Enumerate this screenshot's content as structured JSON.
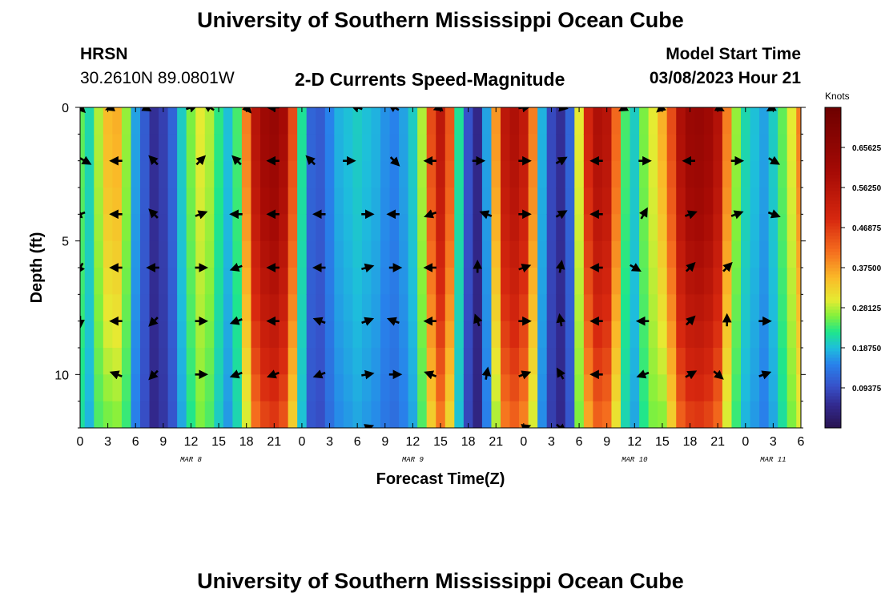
{
  "page_title": "University of Southern Mississippi Ocean Cube",
  "footer_title": "University of Southern Mississippi Ocean Cube",
  "header": {
    "station": "HRSN",
    "coordinates": "30.2610N  89.0801W",
    "plot_title": "2-D Currents Speed-Magnitude",
    "model_label": "Model Start Time",
    "model_time": "03/08/2023 Hour 21"
  },
  "chart_data": {
    "type": "heatmap",
    "title": "2-D Currents Speed-Magnitude",
    "xlabel": "Forecast Time(Z)",
    "ylabel": "Depth (ft)",
    "colorbar_label": "Knots",
    "colorbar_ticks": [
      "0.65625",
      "0.56250",
      "0.46875",
      "0.37500",
      "0.28125",
      "0.18750",
      "0.09375"
    ],
    "colorbar_range": [
      0.0,
      0.75
    ],
    "x_range_hours": [
      0,
      78
    ],
    "x_ticks": [
      {
        "h": 0,
        "label": "0"
      },
      {
        "h": 3,
        "label": "3"
      },
      {
        "h": 6,
        "label": "6"
      },
      {
        "h": 9,
        "label": "9"
      },
      {
        "h": 12,
        "label": "12"
      },
      {
        "h": 15,
        "label": "15"
      },
      {
        "h": 18,
        "label": "18"
      },
      {
        "h": 21,
        "label": "21"
      },
      {
        "h": 24,
        "label": "0"
      },
      {
        "h": 27,
        "label": "3"
      },
      {
        "h": 30,
        "label": "6"
      },
      {
        "h": 33,
        "label": "9"
      },
      {
        "h": 36,
        "label": "12"
      },
      {
        "h": 39,
        "label": "15"
      },
      {
        "h": 42,
        "label": "18"
      },
      {
        "h": 45,
        "label": "21"
      },
      {
        "h": 48,
        "label": "0"
      },
      {
        "h": 51,
        "label": "3"
      },
      {
        "h": 54,
        "label": "6"
      },
      {
        "h": 57,
        "label": "9"
      },
      {
        "h": 60,
        "label": "12"
      },
      {
        "h": 63,
        "label": "15"
      },
      {
        "h": 66,
        "label": "18"
      },
      {
        "h": 69,
        "label": "21"
      },
      {
        "h": 72,
        "label": "0"
      },
      {
        "h": 75,
        "label": "3"
      },
      {
        "h": 78,
        "label": "6"
      }
    ],
    "day_labels": [
      {
        "h": 12,
        "label": "MAR 8"
      },
      {
        "h": 36,
        "label": "MAR 9"
      },
      {
        "h": 60,
        "label": "MAR 10"
      },
      {
        "h": 75,
        "label": "MAR 11"
      }
    ],
    "y_range_ft": [
      0,
      12
    ],
    "y_ticks": [
      {
        "ft": 0,
        "label": "0"
      },
      {
        "ft": 5,
        "label": "5"
      },
      {
        "ft": 10,
        "label": "10"
      }
    ],
    "depths_ft": [
      0,
      2,
      4,
      6,
      8,
      10,
      12
    ],
    "speed_profile_by_hour": [
      {
        "h": 0,
        "v": 0.25
      },
      {
        "h": 1,
        "v": 0.21
      },
      {
        "h": 2,
        "v": 0.28
      },
      {
        "h": 3,
        "v": 0.35
      },
      {
        "h": 4,
        "v": 0.36
      },
      {
        "h": 5,
        "v": 0.27
      },
      {
        "h": 6,
        "v": 0.17
      },
      {
        "h": 7,
        "v": 0.11
      },
      {
        "h": 8,
        "v": 0.06
      },
      {
        "h": 9,
        "v": 0.08
      },
      {
        "h": 10,
        "v": 0.12
      },
      {
        "h": 11,
        "v": 0.2
      },
      {
        "h": 12,
        "v": 0.26
      },
      {
        "h": 13,
        "v": 0.3
      },
      {
        "h": 14,
        "v": 0.28
      },
      {
        "h": 15,
        "v": 0.23
      },
      {
        "h": 16,
        "v": 0.19
      },
      {
        "h": 17,
        "v": 0.24
      },
      {
        "h": 18,
        "v": 0.4
      },
      {
        "h": 19,
        "v": 0.56
      },
      {
        "h": 20,
        "v": 0.62
      },
      {
        "h": 21,
        "v": 0.64
      },
      {
        "h": 22,
        "v": 0.6
      },
      {
        "h": 23,
        "v": 0.45
      },
      {
        "h": 24,
        "v": 0.22
      },
      {
        "h": 25,
        "v": 0.12
      },
      {
        "h": 26,
        "v": 0.11
      },
      {
        "h": 27,
        "v": 0.15
      },
      {
        "h": 28,
        "v": 0.18
      },
      {
        "h": 29,
        "v": 0.19
      },
      {
        "h": 30,
        "v": 0.2
      },
      {
        "h": 31,
        "v": 0.19
      },
      {
        "h": 32,
        "v": 0.18
      },
      {
        "h": 33,
        "v": 0.16
      },
      {
        "h": 34,
        "v": 0.15
      },
      {
        "h": 35,
        "v": 0.17
      },
      {
        "h": 36,
        "v": 0.2
      },
      {
        "h": 37,
        "v": 0.28
      },
      {
        "h": 38,
        "v": 0.45
      },
      {
        "h": 39,
        "v": 0.55
      },
      {
        "h": 40,
        "v": 0.44
      },
      {
        "h": 41,
        "v": 0.22
      },
      {
        "h": 42,
        "v": 0.1
      },
      {
        "h": 43,
        "v": 0.05
      },
      {
        "h": 44,
        "v": 0.17
      },
      {
        "h": 45,
        "v": 0.38
      },
      {
        "h": 46,
        "v": 0.55
      },
      {
        "h": 47,
        "v": 0.58
      },
      {
        "h": 48,
        "v": 0.54
      },
      {
        "h": 49,
        "v": 0.4
      },
      {
        "h": 50,
        "v": 0.18
      },
      {
        "h": 51,
        "v": 0.09
      },
      {
        "h": 52,
        "v": 0.06
      },
      {
        "h": 53,
        "v": 0.12
      },
      {
        "h": 54,
        "v": 0.3
      },
      {
        "h": 55,
        "v": 0.5
      },
      {
        "h": 56,
        "v": 0.58
      },
      {
        "h": 57,
        "v": 0.56
      },
      {
        "h": 58,
        "v": 0.42
      },
      {
        "h": 59,
        "v": 0.24
      },
      {
        "h": 60,
        "v": 0.2
      },
      {
        "h": 61,
        "v": 0.26
      },
      {
        "h": 62,
        "v": 0.3
      },
      {
        "h": 63,
        "v": 0.36
      },
      {
        "h": 64,
        "v": 0.45
      },
      {
        "h": 65,
        "v": 0.58
      },
      {
        "h": 66,
        "v": 0.63
      },
      {
        "h": 67,
        "v": 0.64
      },
      {
        "h": 68,
        "v": 0.62
      },
      {
        "h": 69,
        "v": 0.57
      },
      {
        "h": 70,
        "v": 0.4
      },
      {
        "h": 71,
        "v": 0.27
      },
      {
        "h": 72,
        "v": 0.21
      },
      {
        "h": 73,
        "v": 0.19
      },
      {
        "h": 74,
        "v": 0.17
      },
      {
        "h": 75,
        "v": 0.2
      },
      {
        "h": 76,
        "v": 0.25
      },
      {
        "h": 77,
        "v": 0.3
      },
      {
        "h": 78,
        "v": 0.4
      }
    ],
    "vectors": [
      {
        "h": 0,
        "d": 0,
        "a": 315
      },
      {
        "h": 3.5,
        "d": 0,
        "a": 200
      },
      {
        "h": 7,
        "d": 0,
        "a": 330
      },
      {
        "h": 12,
        "d": 0,
        "a": 20
      },
      {
        "h": 14,
        "d": 0,
        "a": 150
      },
      {
        "h": 18,
        "d": 0,
        "a": 310
      },
      {
        "h": 21,
        "d": 0,
        "a": 180
      },
      {
        "h": 30,
        "d": 0,
        "a": 160
      },
      {
        "h": 34,
        "d": 0,
        "a": 150
      },
      {
        "h": 39,
        "d": 0,
        "a": 200
      },
      {
        "h": 48,
        "d": 0,
        "a": 10
      },
      {
        "h": 52,
        "d": 0,
        "a": 350
      },
      {
        "h": 59,
        "d": 0,
        "a": 210
      },
      {
        "h": 63,
        "d": 0,
        "a": 220
      },
      {
        "h": 69,
        "d": 0,
        "a": 330
      },
      {
        "h": 75,
        "d": 0,
        "a": 210
      },
      {
        "h": 0.5,
        "d": 2,
        "a": 330
      },
      {
        "h": 4,
        "d": 2,
        "a": 180
      },
      {
        "h": 8,
        "d": 2,
        "a": 135
      },
      {
        "h": 13,
        "d": 2,
        "a": 45
      },
      {
        "h": 17,
        "d": 2,
        "a": 135
      },
      {
        "h": 21,
        "d": 2,
        "a": 180
      },
      {
        "h": 25,
        "d": 2,
        "a": 135
      },
      {
        "h": 29,
        "d": 2,
        "a": 0
      },
      {
        "h": 34,
        "d": 2,
        "a": 315
      },
      {
        "h": 38,
        "d": 2,
        "a": 180
      },
      {
        "h": 43,
        "d": 2,
        "a": 0
      },
      {
        "h": 48,
        "d": 2,
        "a": 0
      },
      {
        "h": 52,
        "d": 2,
        "a": 30
      },
      {
        "h": 56,
        "d": 2,
        "a": 180
      },
      {
        "h": 61,
        "d": 2,
        "a": 0
      },
      {
        "h": 66,
        "d": 2,
        "a": 180
      },
      {
        "h": 71,
        "d": 2,
        "a": 0
      },
      {
        "h": 75,
        "d": 2,
        "a": 330
      },
      {
        "h": 0,
        "d": 4,
        "a": 200
      },
      {
        "h": 4,
        "d": 4,
        "a": 180
      },
      {
        "h": 8,
        "d": 4,
        "a": 135
      },
      {
        "h": 13,
        "d": 4,
        "a": 20
      },
      {
        "h": 17,
        "d": 4,
        "a": 180
      },
      {
        "h": 21,
        "d": 4,
        "a": 180
      },
      {
        "h": 26,
        "d": 4,
        "a": 180
      },
      {
        "h": 31,
        "d": 4,
        "a": 0
      },
      {
        "h": 34,
        "d": 4,
        "a": 180
      },
      {
        "h": 38,
        "d": 4,
        "a": 200
      },
      {
        "h": 44,
        "d": 4,
        "a": 160
      },
      {
        "h": 48,
        "d": 4,
        "a": 0
      },
      {
        "h": 52,
        "d": 4,
        "a": 30
      },
      {
        "h": 56,
        "d": 4,
        "a": 180
      },
      {
        "h": 61,
        "d": 4,
        "a": 60
      },
      {
        "h": 66,
        "d": 4,
        "a": 20
      },
      {
        "h": 71,
        "d": 4,
        "a": 20
      },
      {
        "h": 75,
        "d": 4,
        "a": 340
      },
      {
        "h": 0,
        "d": 6,
        "a": 240
      },
      {
        "h": 4,
        "d": 6,
        "a": 180
      },
      {
        "h": 8,
        "d": 6,
        "a": 180
      },
      {
        "h": 13,
        "d": 6,
        "a": 0
      },
      {
        "h": 17,
        "d": 6,
        "a": 200
      },
      {
        "h": 21,
        "d": 6,
        "a": 180
      },
      {
        "h": 26,
        "d": 6,
        "a": 180
      },
      {
        "h": 31,
        "d": 6,
        "a": 15
      },
      {
        "h": 34,
        "d": 6,
        "a": 0
      },
      {
        "h": 38,
        "d": 6,
        "a": 180
      },
      {
        "h": 43,
        "d": 6,
        "a": 90
      },
      {
        "h": 48,
        "d": 6,
        "a": 20
      },
      {
        "h": 52,
        "d": 6,
        "a": 80
      },
      {
        "h": 56,
        "d": 6,
        "a": 180
      },
      {
        "h": 60,
        "d": 6,
        "a": 330
      },
      {
        "h": 66,
        "d": 6,
        "a": 45
      },
      {
        "h": 70,
        "d": 6,
        "a": 45
      },
      {
        "h": 0,
        "d": 8,
        "a": 270
      },
      {
        "h": 4,
        "d": 8,
        "a": 180
      },
      {
        "h": 8,
        "d": 8,
        "a": 225
      },
      {
        "h": 13,
        "d": 8,
        "a": 0
      },
      {
        "h": 17,
        "d": 8,
        "a": 200
      },
      {
        "h": 21,
        "d": 8,
        "a": 180
      },
      {
        "h": 26,
        "d": 8,
        "a": 160
      },
      {
        "h": 31,
        "d": 8,
        "a": 20
      },
      {
        "h": 34,
        "d": 8,
        "a": 160
      },
      {
        "h": 38,
        "d": 8,
        "a": 180
      },
      {
        "h": 43,
        "d": 8,
        "a": 110
      },
      {
        "h": 48,
        "d": 8,
        "a": 0
      },
      {
        "h": 52,
        "d": 8,
        "a": 100
      },
      {
        "h": 56,
        "d": 8,
        "a": 180
      },
      {
        "h": 61,
        "d": 8,
        "a": 180
      },
      {
        "h": 66,
        "d": 8,
        "a": 45
      },
      {
        "h": 70,
        "d": 8,
        "a": 90
      },
      {
        "h": 74,
        "d": 8,
        "a": 0
      },
      {
        "h": 4,
        "d": 10,
        "a": 160
      },
      {
        "h": 8,
        "d": 10,
        "a": 225
      },
      {
        "h": 13,
        "d": 10,
        "a": 0
      },
      {
        "h": 17,
        "d": 10,
        "a": 200
      },
      {
        "h": 21,
        "d": 10,
        "a": 200
      },
      {
        "h": 26,
        "d": 10,
        "a": 200
      },
      {
        "h": 31,
        "d": 10,
        "a": 10
      },
      {
        "h": 34,
        "d": 10,
        "a": 0
      },
      {
        "h": 38,
        "d": 10,
        "a": 160
      },
      {
        "h": 44,
        "d": 10,
        "a": 80
      },
      {
        "h": 48,
        "d": 10,
        "a": 20
      },
      {
        "h": 52,
        "d": 10,
        "a": 120
      },
      {
        "h": 56,
        "d": 10,
        "a": 180
      },
      {
        "h": 61,
        "d": 10,
        "a": 200
      },
      {
        "h": 66,
        "d": 10,
        "a": 30
      },
      {
        "h": 69,
        "d": 10,
        "a": 320
      },
      {
        "h": 74,
        "d": 10,
        "a": 20
      },
      {
        "h": 31,
        "d": 12,
        "a": 20
      },
      {
        "h": 48,
        "d": 12,
        "a": 20
      },
      {
        "h": 52,
        "d": 12,
        "a": 320
      }
    ]
  }
}
